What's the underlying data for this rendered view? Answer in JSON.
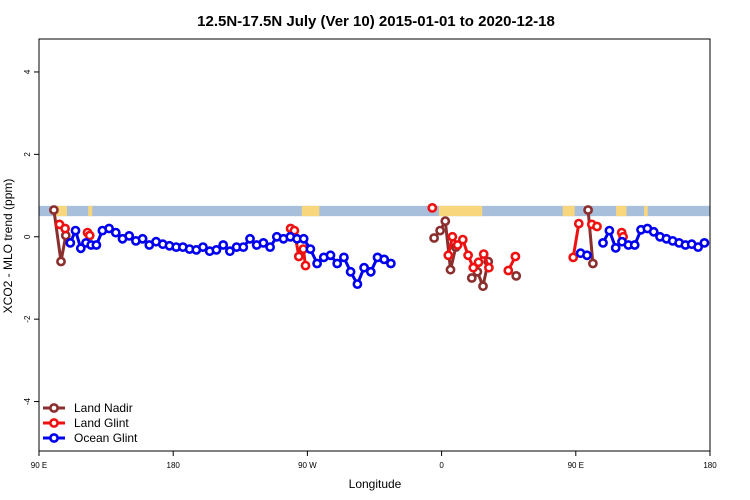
{
  "chart_data": {
    "type": "line",
    "title": "12.5N-17.5N July (Ver 10)   2015-01-01 to 2020-12-18",
    "xlabel": "Longitude",
    "ylabel": "XCO2 - MLO trend (ppm)",
    "xlim": [
      90,
      270
    ],
    "ylim": [
      -5.2,
      4.8
    ],
    "x_ticks": [
      {
        "value": 90,
        "label": "90 E"
      },
      {
        "value": 126,
        "label": "180"
      },
      {
        "value": 162,
        "label": "90 W"
      },
      {
        "value": 198,
        "label": "0"
      },
      {
        "value": 234,
        "label": "90 E"
      },
      {
        "value": 270,
        "label": "180"
      }
    ],
    "y_ticks": [
      {
        "value": 4,
        "label": "4"
      },
      {
        "value": 2,
        "label": "2"
      },
      {
        "value": 0,
        "label": "0"
      },
      {
        "value": -2,
        "label": "-2"
      },
      {
        "value": -4,
        "label": "-4"
      }
    ],
    "grid": false,
    "legend_position": "bottom-left",
    "land_band": {
      "y_range": [
        0.5,
        0.75
      ],
      "ocean_color": "#a8bfdc",
      "land_color": "#f8d67c",
      "land_segments": [
        [
          94.3,
          97.5
        ],
        [
          103.2,
          104.3
        ],
        [
          160.5,
          165.2
        ],
        [
          197.3,
          208.9
        ],
        [
          230.5,
          233.7
        ],
        [
          244.8,
          247.6
        ],
        [
          252.3,
          253.3
        ]
      ]
    },
    "series": [
      {
        "name": "Land Nadir",
        "color": "#8b2e2e",
        "segments": [
          [
            [
              94.0,
              0.65
            ],
            [
              95.9,
              -0.6
            ],
            [
              97.2,
              0.03
            ]
          ],
          [
            [
              196.0,
              -0.03
            ],
            [
              197.6,
              0.15
            ],
            [
              199.0,
              0.38
            ],
            [
              200.4,
              -0.8
            ],
            [
              201.8,
              -0.25
            ]
          ],
          [
            [
              206.1,
              -1.0
            ],
            [
              207.6,
              -0.85
            ],
            [
              209.1,
              -1.2
            ],
            [
              210.5,
              -0.6
            ]
          ],
          [
            [
              218.0,
              -0.95
            ]
          ],
          [
            [
              237.3,
              0.65
            ],
            [
              238.6,
              -0.65
            ]
          ]
        ]
      },
      {
        "name": "Land Glint",
        "color": "#ee1111",
        "segments": [
          [
            [
              95.5,
              0.3
            ],
            [
              97.0,
              0.2
            ]
          ],
          [
            [
              103.0,
              0.1
            ],
            [
              103.6,
              0.03
            ]
          ],
          [
            [
              157.5,
              0.2
            ],
            [
              158.5,
              0.15
            ],
            [
              159.7,
              -0.48
            ],
            [
              160.9,
              -0.3
            ],
            [
              161.5,
              -0.7
            ]
          ],
          [
            [
              195.5,
              0.7
            ]
          ],
          [
            [
              199.8,
              -0.45
            ],
            [
              200.9,
              0.0
            ],
            [
              202.3,
              -0.2
            ],
            [
              203.7,
              -0.07
            ],
            [
              205.1,
              -0.45
            ],
            [
              206.5,
              -0.75
            ],
            [
              207.9,
              -0.62
            ],
            [
              209.3,
              -0.42
            ],
            [
              210.7,
              -0.75
            ]
          ],
          [
            [
              215.9,
              -0.82
            ],
            [
              217.8,
              -0.48
            ]
          ],
          [
            [
              233.3,
              -0.5
            ],
            [
              234.8,
              0.32
            ]
          ],
          [
            [
              238.3,
              0.3
            ],
            [
              239.7,
              0.25
            ]
          ],
          [
            [
              246.3,
              0.1
            ],
            [
              246.7,
              0.0
            ]
          ]
        ]
      },
      {
        "name": "Ocean Glint",
        "color": "#0000ee",
        "segments": [
          [
            [
              98.4,
              -0.15
            ],
            [
              99.8,
              0.15
            ],
            [
              101.2,
              -0.28
            ],
            [
              102.6,
              -0.15
            ],
            [
              104.0,
              -0.2
            ],
            [
              105.4,
              -0.2
            ],
            [
              107.0,
              0.15
            ],
            [
              108.8,
              0.2
            ],
            [
              110.6,
              0.1
            ],
            [
              112.4,
              -0.05
            ],
            [
              114.2,
              0.02
            ],
            [
              116.0,
              -0.1
            ],
            [
              117.8,
              -0.05
            ],
            [
              119.6,
              -0.2
            ],
            [
              121.4,
              -0.12
            ],
            [
              123.2,
              -0.18
            ],
            [
              125.0,
              -0.22
            ],
            [
              126.8,
              -0.25
            ],
            [
              128.6,
              -0.25
            ],
            [
              130.4,
              -0.3
            ],
            [
              132.2,
              -0.32
            ],
            [
              134.0,
              -0.25
            ],
            [
              135.8,
              -0.35
            ],
            [
              137.6,
              -0.32
            ],
            [
              139.4,
              -0.2
            ],
            [
              141.2,
              -0.35
            ],
            [
              143.0,
              -0.25
            ],
            [
              144.8,
              -0.25
            ],
            [
              146.6,
              -0.05
            ],
            [
              148.4,
              -0.2
            ],
            [
              150.2,
              -0.15
            ],
            [
              152.0,
              -0.25
            ],
            [
              153.8,
              0.0
            ],
            [
              155.6,
              -0.05
            ],
            [
              157.4,
              0.0
            ],
            [
              159.2,
              -0.05
            ],
            [
              161.0,
              -0.05
            ],
            [
              162.8,
              -0.3
            ],
            [
              164.6,
              -0.65
            ],
            [
              166.4,
              -0.5
            ],
            [
              168.2,
              -0.45
            ],
            [
              170.0,
              -0.65
            ],
            [
              171.8,
              -0.5
            ],
            [
              173.6,
              -0.85
            ],
            [
              175.4,
              -1.15
            ],
            [
              177.2,
              -0.75
            ],
            [
              179.0,
              -0.85
            ],
            [
              180.8,
              -0.5
            ],
            [
              182.6,
              -0.55
            ],
            [
              184.4,
              -0.65
            ]
          ],
          [
            [
              235.3,
              -0.4
            ],
            [
              237.0,
              -0.45
            ]
          ],
          [
            [
              241.3,
              -0.15
            ],
            [
              243.0,
              0.15
            ],
            [
              244.7,
              -0.27
            ],
            [
              246.4,
              -0.12
            ],
            [
              248.1,
              -0.2
            ],
            [
              249.8,
              -0.2
            ],
            [
              251.5,
              0.17
            ],
            [
              253.2,
              0.2
            ],
            [
              254.9,
              0.12
            ],
            [
              256.6,
              0.0
            ],
            [
              258.3,
              -0.05
            ],
            [
              260.0,
              -0.1
            ],
            [
              261.7,
              -0.15
            ],
            [
              263.4,
              -0.2
            ],
            [
              265.1,
              -0.18
            ],
            [
              266.8,
              -0.25
            ],
            [
              268.5,
              -0.15
            ]
          ]
        ]
      }
    ]
  }
}
